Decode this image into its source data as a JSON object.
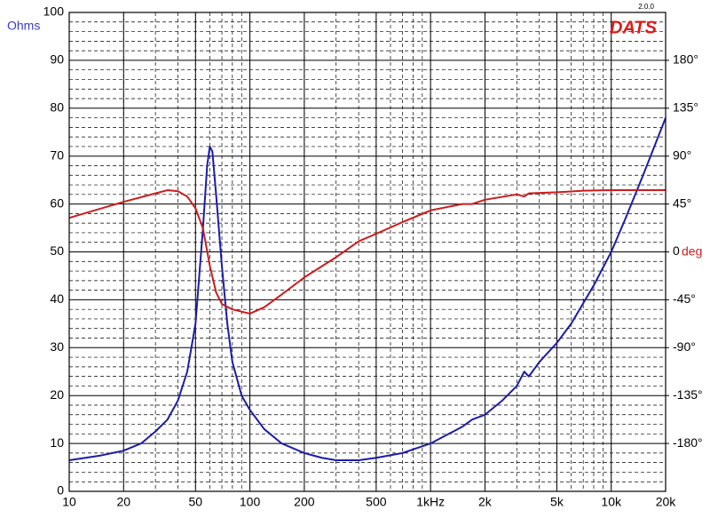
{
  "chart_data": {
    "type": "line",
    "logo": "DATS",
    "version": "2.0.0",
    "y_label": "Ohms",
    "y2_label": "deg",
    "xlim": [
      10,
      20000
    ],
    "ylim": [
      0,
      100
    ],
    "y2lim": [
      -225,
      225
    ],
    "log_x": true,
    "grid": true,
    "xticks": [
      10,
      20,
      50,
      100,
      200,
      500,
      {
        "value": 1000,
        "label": "1kHz"
      },
      {
        "value": 2000,
        "label": "2k"
      },
      {
        "value": 5000,
        "label": "5k"
      },
      {
        "value": 10000,
        "label": "10k"
      },
      {
        "value": 20000,
        "label": "20k"
      }
    ],
    "yticks": [
      0,
      10,
      20,
      30,
      40,
      50,
      60,
      70,
      80,
      90,
      100
    ],
    "y2ticks": [
      {
        "value": -180,
        "label": "-180°"
      },
      {
        "value": -135,
        "label": "-135°"
      },
      {
        "value": -90,
        "label": "-90°"
      },
      {
        "value": -45,
        "label": "-45°"
      },
      0,
      {
        "value": 45,
        "label": "45°"
      },
      {
        "value": 90,
        "label": "90°"
      },
      {
        "value": 135,
        "label": "135°"
      },
      {
        "value": 180,
        "label": "180°"
      }
    ],
    "series": [
      {
        "name": "Ohms",
        "color": "#1c1cab",
        "axis": "y",
        "x": [
          10,
          15,
          20,
          25,
          30,
          35,
          40,
          45,
          50,
          55,
          58,
          60,
          62,
          65,
          70,
          75,
          80,
          90,
          100,
          120,
          150,
          200,
          250,
          300,
          400,
          500,
          700,
          1000,
          1500,
          1700,
          2000,
          2500,
          3000,
          3300,
          3500,
          4000,
          5000,
          6000,
          8000,
          10000,
          12000,
          15000,
          20000
        ],
        "values": [
          6.5,
          7.5,
          8.5,
          10,
          12.5,
          15,
          19,
          25,
          35,
          55,
          68,
          72,
          71,
          62,
          47,
          35,
          27,
          20,
          17,
          13,
          10,
          8,
          7,
          6.5,
          6.5,
          7,
          8,
          10,
          13.5,
          15,
          16,
          19,
          22,
          25,
          24,
          27,
          31,
          35,
          43,
          50,
          57,
          66,
          78
        ]
      },
      {
        "name": "deg",
        "color": "#cc1c1c",
        "axis": "y2",
        "x": [
          10,
          20,
          30,
          35,
          40,
          45,
          50,
          55,
          60,
          65,
          70,
          80,
          100,
          120,
          150,
          200,
          300,
          400,
          500,
          700,
          1000,
          1500,
          1700,
          2000,
          3000,
          3300,
          3500,
          5000,
          7000,
          10000,
          20000
        ],
        "values": [
          32,
          47,
          55,
          58,
          57,
          52,
          41,
          22,
          -13,
          -38,
          -49,
          -54,
          -58,
          -52,
          -40,
          -24,
          -5,
          10,
          17,
          28,
          39,
          45,
          45,
          49,
          54,
          52,
          55,
          56,
          57.5,
          58,
          58
        ]
      }
    ]
  }
}
